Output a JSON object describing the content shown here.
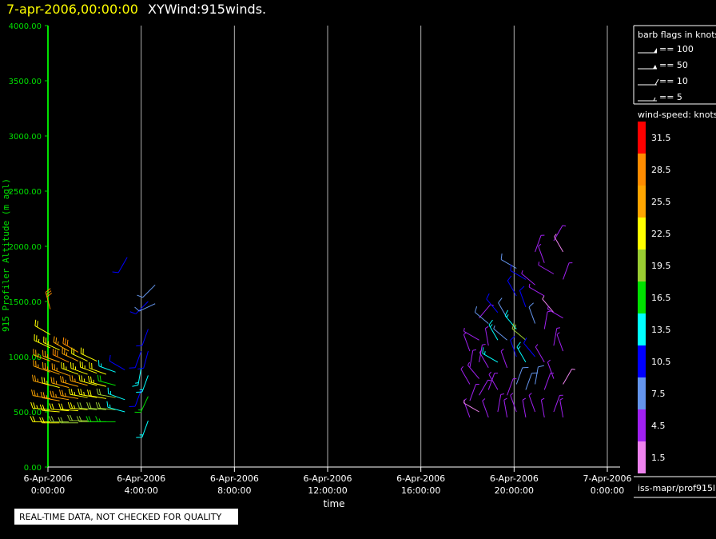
{
  "header": {
    "timestamp": "7-apr-2006,00:00:00",
    "title": "XYWind:915winds."
  },
  "footer": {
    "notice": "REAL-TIME DATA, NOT CHECKED FOR QUALITY",
    "source": "iss-mapr/prof915l"
  },
  "legend": {
    "flags_title": "barb flags in knots",
    "flags": [
      "== 100",
      "== 50",
      "== 10",
      "== 5"
    ],
    "speed_title": "wind-speed: knots",
    "colorbar": [
      {
        "label": "31.5",
        "color": "#ff0000"
      },
      {
        "label": "28.5",
        "color": "#ff8c00"
      },
      {
        "label": "25.5",
        "color": "#ffa500"
      },
      {
        "label": "22.5",
        "color": "#ffff00"
      },
      {
        "label": "19.5",
        "color": "#9acd32"
      },
      {
        "label": "16.5",
        "color": "#00e000"
      },
      {
        "label": "13.5",
        "color": "#00ffff"
      },
      {
        "label": "10.5",
        "color": "#0000ff"
      },
      {
        "label": "7.5",
        "color": "#6495ed"
      },
      {
        "label": "4.5",
        "color": "#a020f0"
      },
      {
        "label": "1.5",
        "color": "#ee82ee"
      }
    ]
  },
  "chart_data": {
    "type": "wind-barb time-height plot",
    "ylabel": "915 Profiler Altitude (m agl)",
    "xlabel": "time",
    "ylim": [
      0,
      4000
    ],
    "yticks": [
      "0.00",
      "500.00",
      "1000.00",
      "1500.00",
      "2000.00",
      "2500.00",
      "3000.00",
      "3500.00",
      "4000.00"
    ],
    "xlim_hours": [
      0,
      24
    ],
    "xticks": [
      {
        "hour": 0,
        "date": "6-Apr-2006",
        "time": "0:00:00"
      },
      {
        "hour": 4,
        "date": "6-Apr-2006",
        "time": "4:00:00"
      },
      {
        "hour": 8,
        "date": "6-Apr-2006",
        "time": "8:00:00"
      },
      {
        "hour": 12,
        "date": "6-Apr-2006",
        "time": "12:00:00"
      },
      {
        "hour": 16,
        "date": "6-Apr-2006",
        "time": "16:00:00"
      },
      {
        "hour": 20,
        "date": "6-Apr-2006",
        "time": "20:00:00"
      },
      {
        "hour": 24,
        "date": "7-Apr-2006",
        "time": "0:00:00"
      }
    ],
    "grid": "vertical at major ticks",
    "series": [
      {
        "period": "early (00:00-05:00)",
        "barbs": [
          {
            "t": 0.1,
            "alt": 410,
            "speed": 22,
            "dir": 270
          },
          {
            "t": 0.1,
            "alt": 520,
            "speed": 24,
            "dir": 275
          },
          {
            "t": 0.1,
            "alt": 620,
            "speed": 25,
            "dir": 280
          },
          {
            "t": 0.1,
            "alt": 740,
            "speed": 25,
            "dir": 285
          },
          {
            "t": 0.1,
            "alt": 860,
            "speed": 26,
            "dir": 290
          },
          {
            "t": 0.1,
            "alt": 960,
            "speed": 27,
            "dir": 290
          },
          {
            "t": 0.1,
            "alt": 1080,
            "speed": 24,
            "dir": 295
          },
          {
            "t": 0.1,
            "alt": 1200,
            "speed": 22,
            "dir": 300
          },
          {
            "t": 0.1,
            "alt": 1430,
            "speed": 30,
            "dir": 345
          },
          {
            "t": 0.5,
            "alt": 400,
            "speed": 22,
            "dir": 270
          },
          {
            "t": 0.5,
            "alt": 500,
            "speed": 22,
            "dir": 275
          },
          {
            "t": 0.5,
            "alt": 600,
            "speed": 26,
            "dir": 280
          },
          {
            "t": 0.5,
            "alt": 720,
            "speed": 24,
            "dir": 285
          },
          {
            "t": 0.5,
            "alt": 840,
            "speed": 27,
            "dir": 290
          },
          {
            "t": 0.5,
            "alt": 950,
            "speed": 27,
            "dir": 290
          },
          {
            "t": 0.5,
            "alt": 1060,
            "speed": 24,
            "dir": 295
          },
          {
            "t": 0.9,
            "alt": 410,
            "speed": 20,
            "dir": 270
          },
          {
            "t": 0.9,
            "alt": 510,
            "speed": 22,
            "dir": 275
          },
          {
            "t": 0.9,
            "alt": 610,
            "speed": 25,
            "dir": 280
          },
          {
            "t": 0.9,
            "alt": 720,
            "speed": 25,
            "dir": 285
          },
          {
            "t": 0.9,
            "alt": 830,
            "speed": 27,
            "dir": 290
          },
          {
            "t": 0.9,
            "alt": 950,
            "speed": 29,
            "dir": 295
          },
          {
            "t": 0.9,
            "alt": 1050,
            "speed": 26,
            "dir": 300
          },
          {
            "t": 1.3,
            "alt": 400,
            "speed": 20,
            "dir": 270
          },
          {
            "t": 1.3,
            "alt": 510,
            "speed": 22,
            "dir": 275
          },
          {
            "t": 1.3,
            "alt": 620,
            "speed": 25,
            "dir": 280
          },
          {
            "t": 1.3,
            "alt": 730,
            "speed": 25,
            "dir": 285
          },
          {
            "t": 1.3,
            "alt": 840,
            "speed": 24,
            "dir": 290
          },
          {
            "t": 1.3,
            "alt": 960,
            "speed": 25,
            "dir": 295
          },
          {
            "t": 1.3,
            "alt": 1040,
            "speed": 28,
            "dir": 300
          },
          {
            "t": 1.7,
            "alt": 420,
            "speed": 20,
            "dir": 270
          },
          {
            "t": 1.7,
            "alt": 520,
            "speed": 24,
            "dir": 275
          },
          {
            "t": 1.7,
            "alt": 630,
            "speed": 24,
            "dir": 280
          },
          {
            "t": 1.7,
            "alt": 740,
            "speed": 25,
            "dir": 285
          },
          {
            "t": 1.7,
            "alt": 840,
            "speed": 23,
            "dir": 290
          },
          {
            "t": 1.7,
            "alt": 960,
            "speed": 22,
            "dir": 295
          },
          {
            "t": 2.1,
            "alt": 410,
            "speed": 19,
            "dir": 270
          },
          {
            "t": 2.1,
            "alt": 520,
            "speed": 21,
            "dir": 275
          },
          {
            "t": 2.1,
            "alt": 630,
            "speed": 23,
            "dir": 280
          },
          {
            "t": 2.1,
            "alt": 740,
            "speed": 24,
            "dir": 285
          },
          {
            "t": 2.1,
            "alt": 850,
            "speed": 24,
            "dir": 290
          },
          {
            "t": 2.1,
            "alt": 960,
            "speed": 22,
            "dir": 295
          },
          {
            "t": 2.5,
            "alt": 410,
            "speed": 18,
            "dir": 270
          },
          {
            "t": 2.5,
            "alt": 520,
            "speed": 20,
            "dir": 275
          },
          {
            "t": 2.5,
            "alt": 620,
            "speed": 22,
            "dir": 280
          },
          {
            "t": 2.5,
            "alt": 730,
            "speed": 23,
            "dir": 285
          },
          {
            "t": 2.5,
            "alt": 840,
            "speed": 22,
            "dir": 290
          },
          {
            "t": 2.9,
            "alt": 410,
            "speed": 17,
            "dir": 270
          },
          {
            "t": 2.9,
            "alt": 520,
            "speed": 19,
            "dir": 275
          },
          {
            "t": 2.9,
            "alt": 630,
            "speed": 20,
            "dir": 280
          },
          {
            "t": 2.9,
            "alt": 740,
            "speed": 18,
            "dir": 285
          },
          {
            "t": 2.9,
            "alt": 860,
            "speed": 15,
            "dir": 290
          },
          {
            "t": 3.3,
            "alt": 500,
            "speed": 13,
            "dir": 285
          },
          {
            "t": 3.3,
            "alt": 610,
            "speed": 14,
            "dir": 290
          },
          {
            "t": 3.3,
            "alt": 880,
            "speed": 12,
            "dir": 300
          },
          {
            "t": 3.4,
            "alt": 1900,
            "speed": 11,
            "dir": 210
          },
          {
            "t": 4.0,
            "alt": 700,
            "speed": 12,
            "dir": 200
          },
          {
            "t": 4.0,
            "alt": 900,
            "speed": 14,
            "dir": 190
          },
          {
            "t": 4.0,
            "alt": 1050,
            "speed": 11,
            "dir": 200
          },
          {
            "t": 4.3,
            "alt": 420,
            "speed": 15,
            "dir": 200
          },
          {
            "t": 4.3,
            "alt": 640,
            "speed": 16,
            "dir": 205
          },
          {
            "t": 4.3,
            "alt": 830,
            "speed": 14,
            "dir": 200
          },
          {
            "t": 4.3,
            "alt": 1050,
            "speed": 12,
            "dir": 195
          },
          {
            "t": 4.3,
            "alt": 1250,
            "speed": 11,
            "dir": 200
          },
          {
            "t": 4.3,
            "alt": 1500,
            "speed": 11,
            "dir": 225
          },
          {
            "t": 4.6,
            "alt": 1480,
            "speed": 9,
            "dir": 245
          },
          {
            "t": 4.6,
            "alt": 1650,
            "speed": 9,
            "dir": 225
          }
        ]
      },
      {
        "period": "late (18:00-24:00)",
        "barbs": [
          {
            "t": 18.1,
            "alt": 450,
            "speed": 4,
            "dir": 340
          },
          {
            "t": 18.1,
            "alt": 600,
            "speed": 5,
            "dir": 20
          },
          {
            "t": 18.1,
            "alt": 750,
            "speed": 6,
            "dir": 330
          },
          {
            "t": 18.1,
            "alt": 900,
            "speed": 4,
            "dir": 10
          },
          {
            "t": 18.1,
            "alt": 1050,
            "speed": 5,
            "dir": 340
          },
          {
            "t": 18.5,
            "alt": 500,
            "speed": 3,
            "dir": 300
          },
          {
            "t": 18.5,
            "alt": 650,
            "speed": 5,
            "dir": 30
          },
          {
            "t": 18.5,
            "alt": 800,
            "speed": 6,
            "dir": 320
          },
          {
            "t": 18.5,
            "alt": 950,
            "speed": 4,
            "dir": 10
          },
          {
            "t": 18.5,
            "alt": 1150,
            "speed": 5,
            "dir": 300
          },
          {
            "t": 18.5,
            "alt": 1350,
            "speed": 4,
            "dir": 40
          },
          {
            "t": 18.9,
            "alt": 450,
            "speed": 4,
            "dir": 340
          },
          {
            "t": 18.9,
            "alt": 700,
            "speed": 6,
            "dir": 20
          },
          {
            "t": 18.9,
            "alt": 900,
            "speed": 5,
            "dir": 330
          },
          {
            "t": 18.9,
            "alt": 1100,
            "speed": 6,
            "dir": 350
          },
          {
            "t": 18.9,
            "alt": 1300,
            "speed": 8,
            "dir": 310
          },
          {
            "t": 19.3,
            "alt": 500,
            "speed": 4,
            "dir": 10
          },
          {
            "t": 19.3,
            "alt": 700,
            "speed": 6,
            "dir": 330
          },
          {
            "t": 19.3,
            "alt": 950,
            "speed": 14,
            "dir": 300
          },
          {
            "t": 19.3,
            "alt": 1150,
            "speed": 13,
            "dir": 330
          },
          {
            "t": 19.3,
            "alt": 1400,
            "speed": 12,
            "dir": 320
          },
          {
            "t": 19.7,
            "alt": 450,
            "speed": 4,
            "dir": 350
          },
          {
            "t": 19.7,
            "alt": 650,
            "speed": 6,
            "dir": 20
          },
          {
            "t": 19.7,
            "alt": 900,
            "speed": 5,
            "dir": 340
          },
          {
            "t": 19.7,
            "alt": 1150,
            "speed": 7,
            "dir": 310
          },
          {
            "t": 19.7,
            "alt": 1350,
            "speed": 8,
            "dir": 330
          },
          {
            "t": 20.1,
            "alt": 500,
            "speed": 5,
            "dir": 340
          },
          {
            "t": 20.1,
            "alt": 750,
            "speed": 8,
            "dir": 20
          },
          {
            "t": 20.1,
            "alt": 1000,
            "speed": 12,
            "dir": 340
          },
          {
            "t": 20.1,
            "alt": 1250,
            "speed": 13,
            "dir": 320
          },
          {
            "t": 20.1,
            "alt": 1550,
            "speed": 11,
            "dir": 330
          },
          {
            "t": 20.1,
            "alt": 1800,
            "speed": 9,
            "dir": 300
          },
          {
            "t": 20.5,
            "alt": 450,
            "speed": 6,
            "dir": 350
          },
          {
            "t": 20.5,
            "alt": 700,
            "speed": 9,
            "dir": 20
          },
          {
            "t": 20.5,
            "alt": 950,
            "speed": 13,
            "dir": 330
          },
          {
            "t": 20.5,
            "alt": 1150,
            "speed": 20,
            "dir": 310
          },
          {
            "t": 20.5,
            "alt": 1450,
            "speed": 10,
            "dir": 340
          },
          {
            "t": 20.5,
            "alt": 1700,
            "speed": 11,
            "dir": 300
          },
          {
            "t": 20.9,
            "alt": 500,
            "speed": 6,
            "dir": 340
          },
          {
            "t": 20.9,
            "alt": 750,
            "speed": 9,
            "dir": 10
          },
          {
            "t": 20.9,
            "alt": 1000,
            "speed": 12,
            "dir": 320
          },
          {
            "t": 20.9,
            "alt": 1300,
            "speed": 8,
            "dir": 340
          },
          {
            "t": 20.9,
            "alt": 1650,
            "speed": 6,
            "dir": 310
          },
          {
            "t": 20.9,
            "alt": 1950,
            "speed": 5,
            "dir": 20
          },
          {
            "t": 21.3,
            "alt": 450,
            "speed": 5,
            "dir": 350
          },
          {
            "t": 21.3,
            "alt": 700,
            "speed": 6,
            "dir": 20
          },
          {
            "t": 21.3,
            "alt": 950,
            "speed": 5,
            "dir": 330
          },
          {
            "t": 21.3,
            "alt": 1250,
            "speed": 4,
            "dir": 10
          },
          {
            "t": 21.3,
            "alt": 1550,
            "speed": 5,
            "dir": 300
          },
          {
            "t": 21.3,
            "alt": 1850,
            "speed": 4,
            "dir": 340
          },
          {
            "t": 21.7,
            "alt": 500,
            "speed": 4,
            "dir": 20
          },
          {
            "t": 21.7,
            "alt": 800,
            "speed": 5,
            "dir": 340
          },
          {
            "t": 21.7,
            "alt": 1100,
            "speed": 4,
            "dir": 10
          },
          {
            "t": 21.7,
            "alt": 1400,
            "speed": 3,
            "dir": 320
          },
          {
            "t": 21.7,
            "alt": 1750,
            "speed": 5,
            "dir": 300
          },
          {
            "t": 21.7,
            "alt": 2050,
            "speed": 4,
            "dir": 30
          },
          {
            "t": 22.1,
            "alt": 450,
            "speed": 4,
            "dir": 350
          },
          {
            "t": 22.1,
            "alt": 750,
            "speed": 3,
            "dir": 30
          },
          {
            "t": 22.1,
            "alt": 1050,
            "speed": 4,
            "dir": 340
          },
          {
            "t": 22.1,
            "alt": 1350,
            "speed": 5,
            "dir": 300
          },
          {
            "t": 22.1,
            "alt": 1700,
            "speed": 4,
            "dir": 20
          },
          {
            "t": 22.1,
            "alt": 1950,
            "speed": 3,
            "dir": 330
          }
        ]
      }
    ]
  }
}
